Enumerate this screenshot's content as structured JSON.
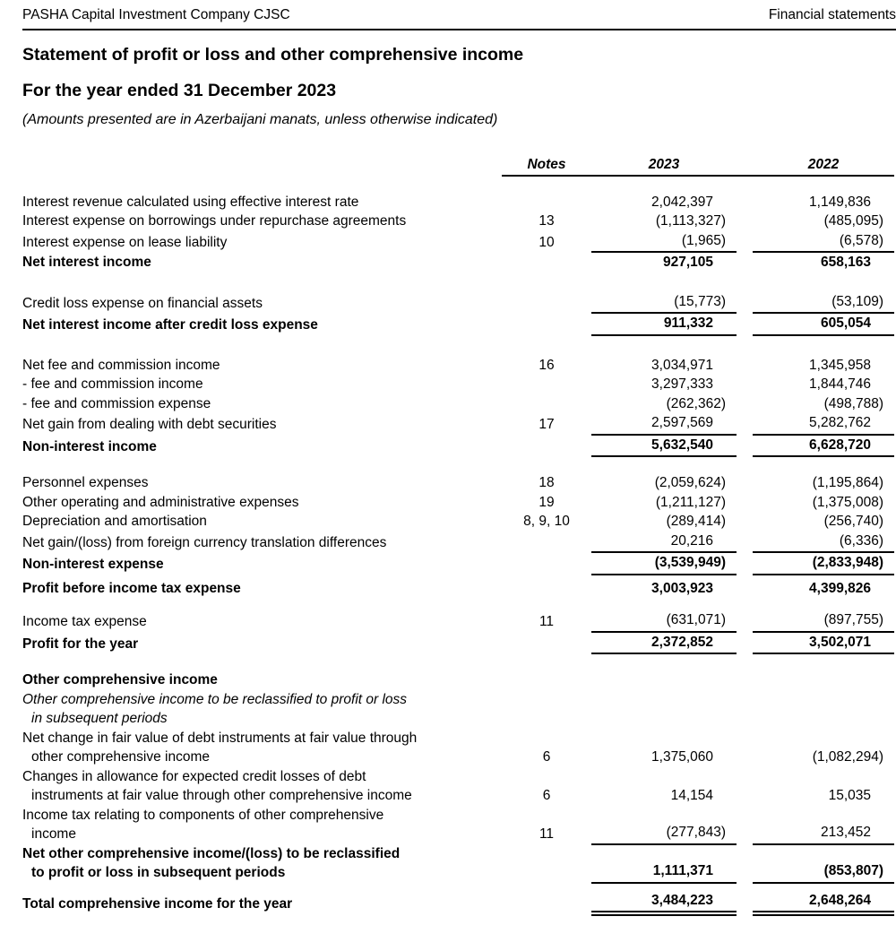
{
  "doc_header": {
    "company": "PASHA Capital Investment Company CJSC",
    "section": "Financial statements"
  },
  "title": "Statement of profit or loss and other comprehensive income",
  "subtitle": "For the year ended 31 December 2023",
  "amounts_note": "(Amounts presented are in Azerbaijani manats, unless otherwise indicated)",
  "table": {
    "headers": {
      "notes": "Notes",
      "y2023": "2023",
      "y2022": "2022"
    },
    "rows": [
      {
        "spacer": 18
      },
      {
        "label": [
          "Interest revenue calculated using effective interest rate"
        ],
        "note": "",
        "v2023": "2,042,397",
        "v2022": "1,149,836"
      },
      {
        "label": [
          "Interest expense on borrowings under repurchase agreements"
        ],
        "note": "13",
        "v2023": "(1,113,327)",
        "v2022": "(485,095)"
      },
      {
        "label": [
          "Interest expense on lease liability"
        ],
        "note": "10",
        "v2023": "(1,965)",
        "v2022": "(6,578)",
        "rule": "single"
      },
      {
        "label": [
          "Net interest income"
        ],
        "bold": true,
        "note": "",
        "v2023": "927,105",
        "v2022": "658,163"
      },
      {
        "spacer": 22
      },
      {
        "label": [
          "Credit loss expense on financial assets"
        ],
        "note": "",
        "v2023": "(15,773)",
        "v2022": "(53,109)",
        "rule": "single"
      },
      {
        "label": [
          "Net interest income after credit loss expense"
        ],
        "bold": true,
        "note": "",
        "v2023": "911,332",
        "v2022": "605,054",
        "rule": "single"
      },
      {
        "spacer": 22
      },
      {
        "label": [
          "Net fee and commission income"
        ],
        "note": "16",
        "v2023": "3,034,971",
        "v2022": "1,345,958"
      },
      {
        "label": [
          "- fee and commission income"
        ],
        "note": "",
        "v2023": "3,297,333",
        "v2022": "1,844,746"
      },
      {
        "label": [
          "- fee and commission expense"
        ],
        "note": "",
        "v2023": "(262,362)",
        "v2022": "(498,788)"
      },
      {
        "label": [
          "Net gain from dealing with debt securities"
        ],
        "note": "17",
        "v2023": "2,597,569",
        "v2022": "5,282,762",
        "rule": "single"
      },
      {
        "label": [
          "Non-interest income"
        ],
        "bold": true,
        "note": "",
        "v2023": "5,632,540",
        "v2022": "6,628,720",
        "rule": "single"
      },
      {
        "spacer": 18
      },
      {
        "label": [
          "Personnel expenses"
        ],
        "note": "18",
        "v2023": "(2,059,624)",
        "v2022": "(1,195,864)"
      },
      {
        "label": [
          "Other operating and administrative expenses"
        ],
        "note": "19",
        "v2023": "(1,211,127)",
        "v2022": "(1,375,008)"
      },
      {
        "label": [
          "Depreciation and amortisation"
        ],
        "note": "8, 9, 10",
        "v2023": "(289,414)",
        "v2022": "(256,740)"
      },
      {
        "label": [
          "Net gain/(loss) from foreign currency translation differences"
        ],
        "note": "",
        "v2023": "20,216",
        "v2022": "(6,336)",
        "rule": "single"
      },
      {
        "label": [
          "Non-interest expense"
        ],
        "bold": true,
        "note": "",
        "v2023": "(3,539,949)",
        "v2022": "(2,833,948)",
        "rule": "single"
      },
      {
        "spacer": 4
      },
      {
        "label": [
          "Profit before income tax expense"
        ],
        "bold": true,
        "note": "",
        "v2023": "3,003,923",
        "v2022": "4,399,826"
      },
      {
        "spacer": 14
      },
      {
        "label": [
          "Income tax expense"
        ],
        "note": "11",
        "v2023": "(631,071)",
        "v2022": "(897,755)",
        "rule": "single"
      },
      {
        "label": [
          "Profit for the year"
        ],
        "bold": true,
        "note": "",
        "v2023": "2,372,852",
        "v2022": "3,502,071",
        "rule": "single"
      },
      {
        "spacer": 18
      },
      {
        "label": [
          "Other comprehensive income"
        ],
        "bold": true,
        "note": "",
        "v2023": "",
        "v2022": ""
      },
      {
        "label": [
          "Other comprehensive income to be reclassified to profit or loss",
          "in subsequent periods"
        ],
        "italic": true,
        "note": "",
        "v2023": "",
        "v2022": ""
      },
      {
        "label": [
          "Net change in fair value of debt instruments at fair value through",
          "other comprehensive income"
        ],
        "note": "6",
        "v2023": "1,375,060",
        "v2022": "(1,082,294)"
      },
      {
        "label": [
          "Changes in allowance for expected credit losses of debt",
          "instruments at fair value through other comprehensive income"
        ],
        "note": "6",
        "v2023": "14,154",
        "v2022": "15,035"
      },
      {
        "label": [
          "Income tax relating to components of other comprehensive",
          "income"
        ],
        "note": "11",
        "v2023": "(277,843)",
        "v2022": "213,452",
        "rule": "single"
      },
      {
        "label": [
          "Net other comprehensive income/(loss) to be reclassified",
          "to profit or loss in subsequent periods"
        ],
        "bold": true,
        "note": "",
        "v2023": "1,111,371",
        "v2022": "(853,807)",
        "rule": "single"
      },
      {
        "spacer": 8
      },
      {
        "label": [
          "Total comprehensive income for the year"
        ],
        "bold": true,
        "note": "",
        "v2023": "3,484,223",
        "v2022": "2,648,264",
        "rule": "double"
      }
    ]
  }
}
